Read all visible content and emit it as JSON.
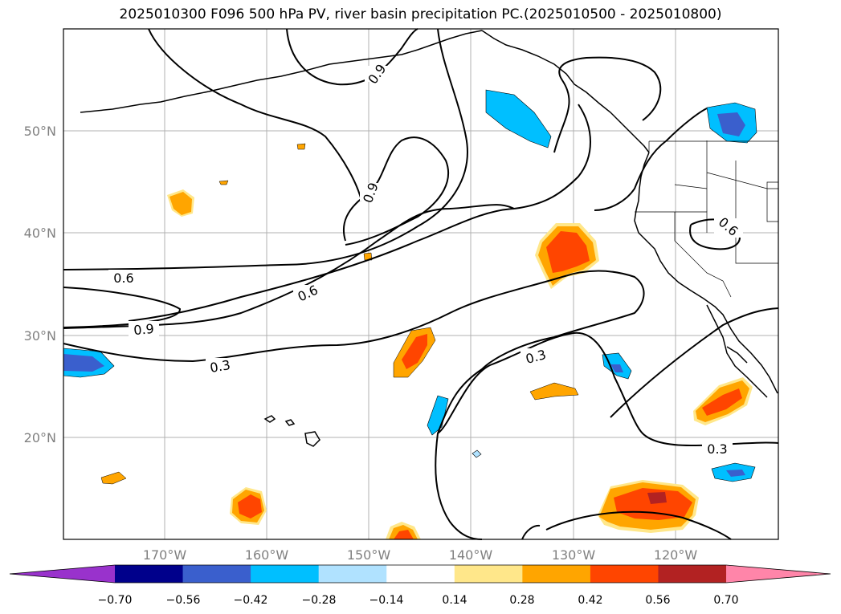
{
  "title": "2025010300 F096 500 hPa PV, river basin precipitation PC (2025010500 - 2025010800)",
  "lon_ticks": [
    "170°W",
    "160°W",
    "150°W",
    "140°W",
    "130°W",
    "120°W"
  ],
  "lat_ticks": [
    "50°N",
    "40°N",
    "30°N",
    "20°N"
  ],
  "contour_labels": [
    "0.9",
    "0.9",
    "0.6",
    "0.6",
    "0.9",
    "0.3",
    "0.6",
    "0.3",
    "0.3"
  ],
  "colorbar": {
    "ticks": [
      "−0.70",
      "−0.56",
      "−0.42",
      "−0.28",
      "−0.14",
      "0.14",
      "0.28",
      "0.42",
      "0.56",
      "0.70"
    ],
    "colors": [
      "#9932cc",
      "#00008b",
      "#3a5fcd",
      "#00bfff",
      "#b0e2ff",
      "#ffffff",
      "#ffe78a",
      "#ffa500",
      "#ff4500",
      "#b22222",
      "#ff85a9"
    ]
  },
  "colors": {
    "neg_strong": "#3a5fcd",
    "neg_mid": "#00bfff",
    "neg_weak": "#b0e2ff",
    "pos_weak": "#ffe78a",
    "pos_mid": "#ffa500",
    "pos_strong": "#ff4500",
    "pos_max": "#b22222",
    "grid": "#b0b0b0",
    "tick_text": "#808080"
  }
}
